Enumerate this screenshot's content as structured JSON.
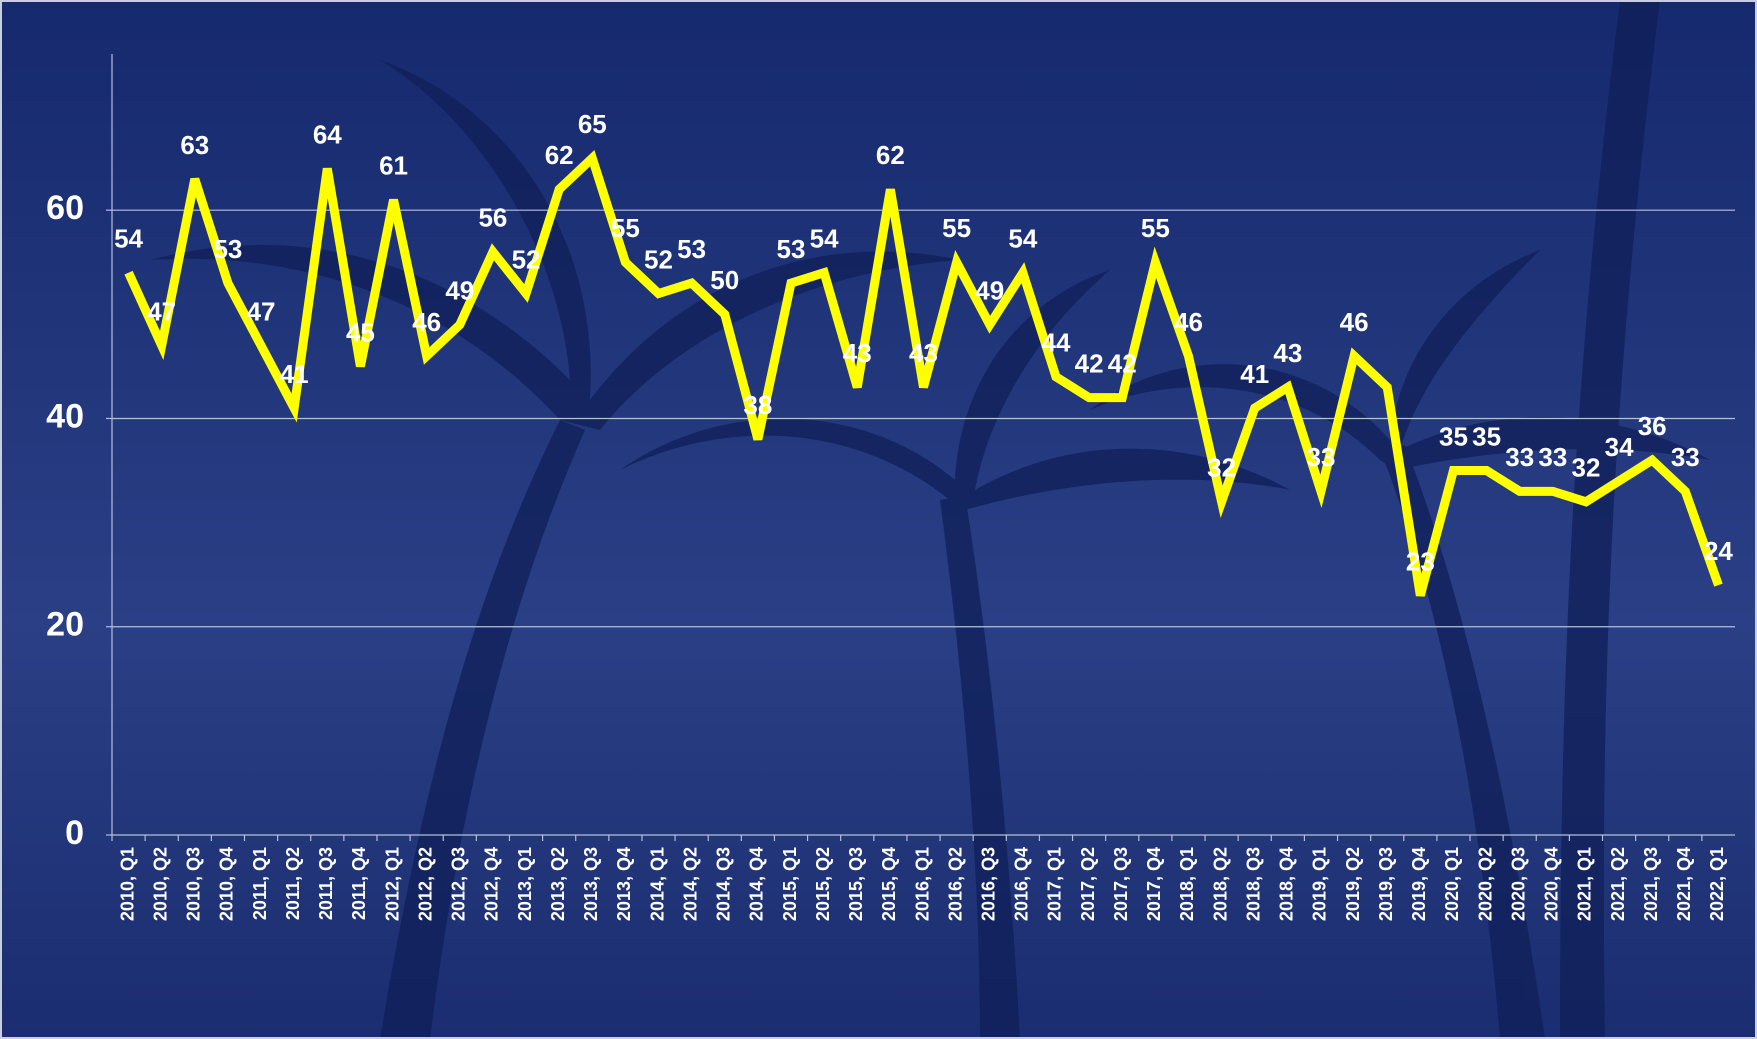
{
  "chart_data": {
    "type": "line",
    "categories": [
      "2010, Q1",
      "2010, Q2",
      "2010, Q3",
      "2010, Q4",
      "2011, Q1",
      "2011, Q2",
      "2011, Q3",
      "2011, Q4",
      "2012, Q1",
      "2012, Q2",
      "2012, Q3",
      "2012, Q4",
      "2013, Q1",
      "2013, Q2",
      "2013, Q3",
      "2013, Q4",
      "2014, Q1",
      "2014, Q2",
      "2014, Q3",
      "2014, Q4",
      "2015, Q1",
      "2015, Q2",
      "2015, Q3",
      "2015, Q4",
      "2016, Q1",
      "2016, Q2",
      "2016, Q3",
      "2016, Q4",
      "2017, Q1",
      "2017, Q2",
      "2017, Q3",
      "2017, Q4",
      "2018, Q1",
      "2018, Q2",
      "2018, Q3",
      "2018, Q4",
      "2019, Q1",
      "2019, Q2",
      "2019, Q3",
      "2019, Q4",
      "2020, Q1",
      "2020, Q2",
      "2020, Q3",
      "2020, Q4",
      "2021, Q1",
      "2021, Q2",
      "2021, Q3",
      "2021, Q4",
      "2022, Q1"
    ],
    "values": [
      54,
      47,
      63,
      53,
      47,
      41,
      64,
      45,
      61,
      46,
      49,
      56,
      52,
      62,
      65,
      55,
      52,
      53,
      50,
      38,
      53,
      54,
      43,
      62,
      43,
      55,
      49,
      54,
      44,
      42,
      42,
      55,
      46,
      32,
      41,
      43,
      33,
      46,
      43,
      23,
      35,
      35,
      33,
      33,
      32,
      34,
      36,
      33,
      24
    ],
    "value_labels": [
      "54",
      "47",
      "63",
      "53",
      "47",
      "41",
      "64",
      "45",
      "61",
      "46",
      "49",
      "56",
      "52",
      "62",
      "65",
      "55",
      "52",
      "53",
      "50",
      "38",
      "53",
      "54",
      "43",
      "62",
      "43",
      "55",
      "49",
      "54",
      "44",
      "42",
      "42",
      "55",
      "46",
      "32",
      "41",
      "43",
      "33",
      "46",
      null,
      "23",
      "35",
      "35",
      "33",
      "33",
      "32",
      "34",
      "36",
      "33",
      "24"
    ],
    "color": "#ffff00",
    "ylim": [
      0,
      75
    ],
    "yticks": [
      0,
      20,
      40,
      60
    ],
    "grid": true
  }
}
